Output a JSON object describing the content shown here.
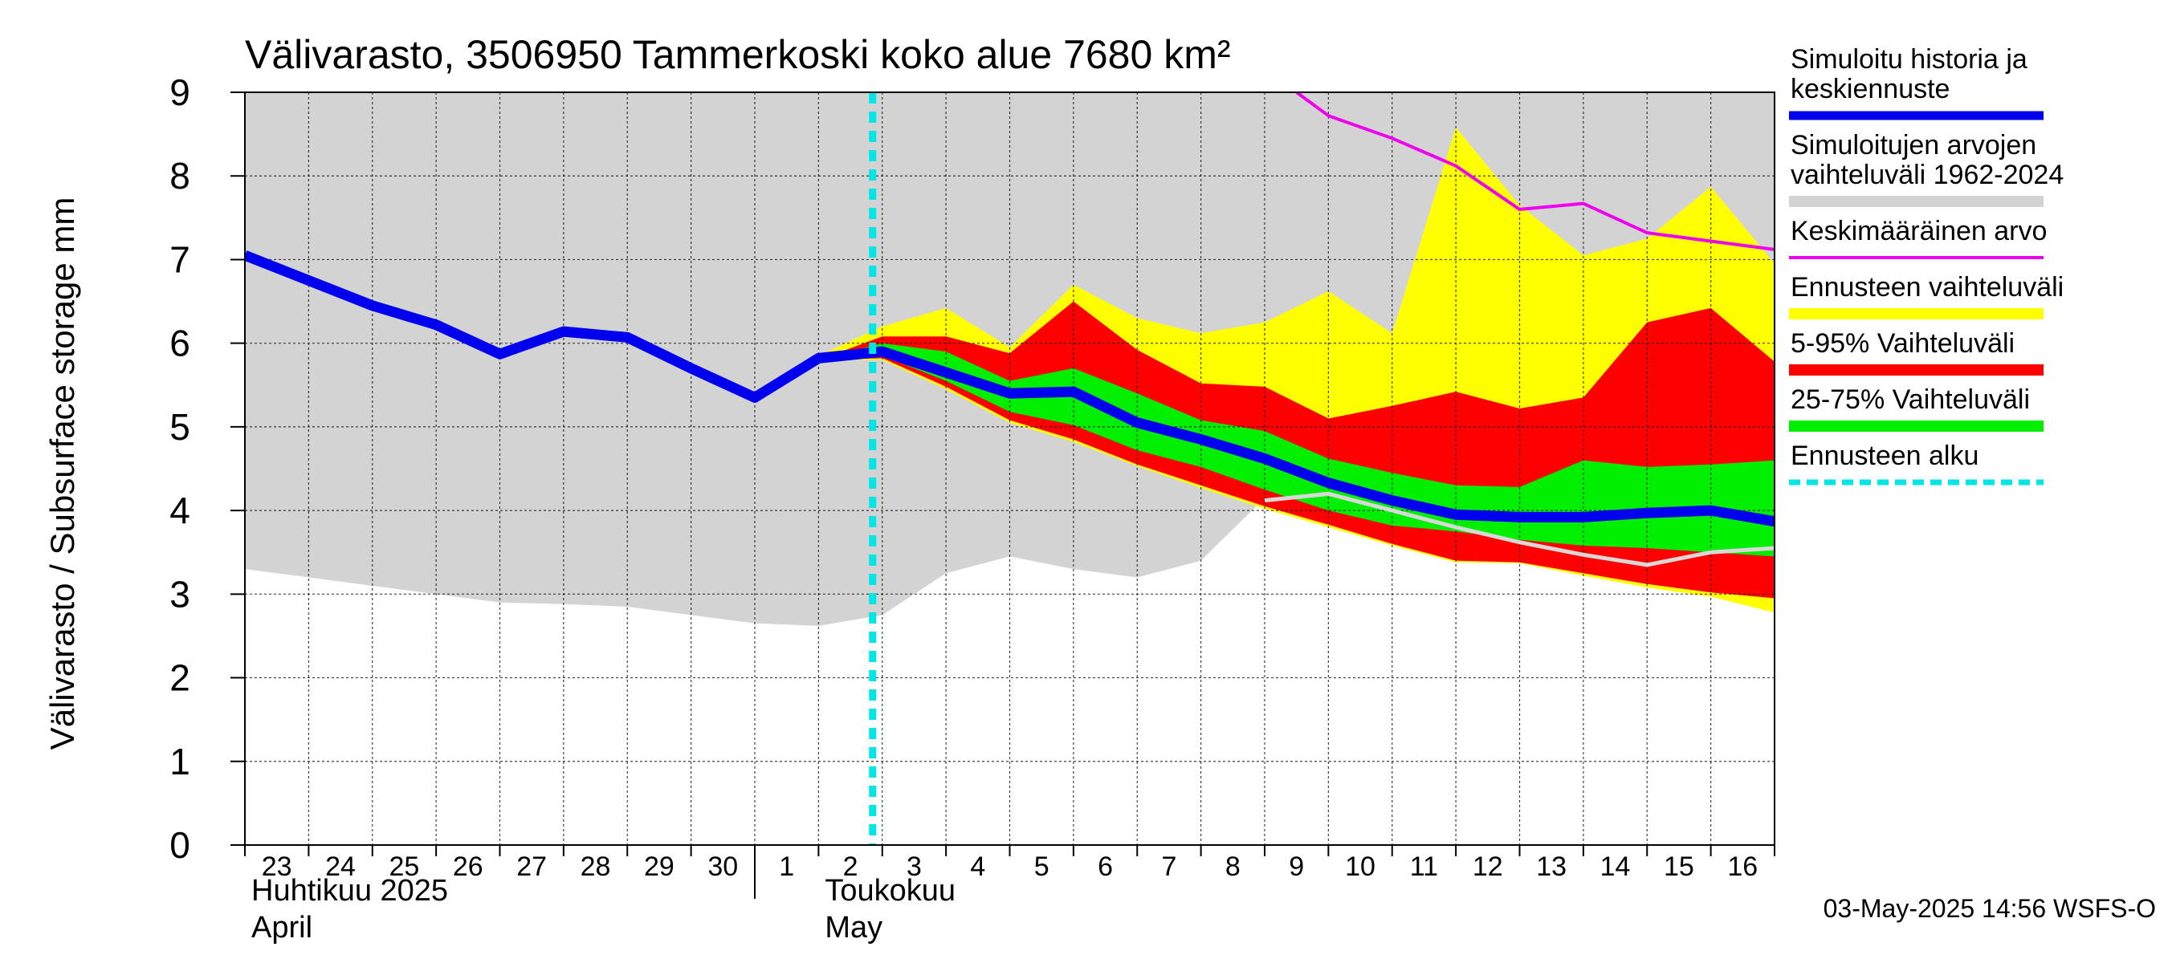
{
  "chart_data": {
    "type": "area",
    "title": "Välivarasto, 3506950 Tammerkoski koko alue 7680 km²",
    "ylabel": "Välivarasto / Subsurface storage  mm",
    "ylim": [
      0,
      9
    ],
    "yticks": [
      0,
      1,
      2,
      3,
      4,
      5,
      6,
      7,
      8,
      9
    ],
    "x_days": [
      "23",
      "24",
      "25",
      "26",
      "27",
      "28",
      "29",
      "30",
      "1",
      "2",
      "3",
      "4",
      "5",
      "6",
      "7",
      "8",
      "9",
      "10",
      "11",
      "12",
      "13",
      "14",
      "15",
      "16"
    ],
    "month_labels": [
      {
        "fi": "Huhtikuu  2025",
        "en": "April",
        "start_day": "23"
      },
      {
        "fi": "Toukokuu",
        "en": "May",
        "start_day": "2"
      }
    ],
    "month_divider_at_day": "1",
    "forecast_start_index": 10,
    "grid": true,
    "colors": {
      "history_range": "#d3d3d3",
      "simulated": "#0000ee",
      "mean": "#ee00ee",
      "forecast_range": "#ffff00",
      "p5_95": "#ff0000",
      "p25_75": "#00ee00",
      "forecast_start": "#00e5e5",
      "gray_line": "#d8d8d8"
    },
    "history_range": {
      "x": [
        0,
        1,
        2,
        3,
        4,
        5,
        6,
        7,
        8,
        9,
        10,
        11,
        12,
        13,
        14,
        15,
        16,
        17,
        18,
        19,
        20,
        21,
        22,
        23,
        24
      ],
      "lower": [
        3.3,
        3.2,
        3.1,
        3.0,
        2.9,
        2.88,
        2.85,
        2.75,
        2.65,
        2.62,
        2.75,
        3.25,
        3.45,
        3.3,
        3.2,
        3.4,
        4.15,
        4.2,
        4.0,
        3.8,
        3.6,
        3.4,
        3.35,
        3.5,
        3.55
      ],
      "upper": [
        9,
        9,
        9,
        9,
        9,
        9,
        9,
        9,
        9,
        9,
        9,
        9,
        9,
        9,
        9,
        9,
        9,
        9,
        9,
        9,
        9,
        9,
        9,
        9,
        9
      ]
    },
    "forecast_range": {
      "x": [
        9,
        10,
        11,
        12,
        13,
        14,
        15,
        16,
        17,
        18,
        19,
        20,
        21,
        22,
        23,
        24
      ],
      "lower": [
        5.8,
        5.8,
        5.45,
        5.05,
        4.82,
        4.53,
        4.27,
        4.02,
        3.8,
        3.58,
        3.38,
        3.37,
        3.22,
        3.08,
        2.97,
        2.78
      ],
      "upper": [
        5.85,
        6.2,
        6.42,
        5.95,
        6.7,
        6.3,
        6.12,
        6.25,
        6.62,
        6.12,
        8.58,
        7.65,
        7.05,
        7.25,
        7.87,
        6.95
      ]
    },
    "p5_95": {
      "x": [
        9,
        10,
        11,
        12,
        13,
        14,
        15,
        16,
        17,
        18,
        19,
        20,
        21,
        22,
        23,
        24
      ],
      "lower": [
        5.8,
        5.82,
        5.48,
        5.08,
        4.85,
        4.55,
        4.3,
        4.05,
        3.83,
        3.6,
        3.4,
        3.38,
        3.25,
        3.12,
        3.02,
        2.95
      ],
      "upper": [
        5.8,
        6.08,
        6.08,
        5.88,
        6.5,
        5.92,
        5.52,
        5.48,
        5.1,
        5.25,
        5.42,
        5.22,
        5.35,
        6.25,
        6.42,
        5.78
      ]
    },
    "p25_75": {
      "x": [
        9,
        10,
        11,
        12,
        13,
        14,
        15,
        16,
        17,
        18,
        19,
        20,
        21,
        22,
        23,
        24
      ],
      "lower": [
        5.8,
        5.85,
        5.55,
        5.18,
        5.02,
        4.72,
        4.52,
        4.25,
        4.0,
        3.82,
        3.75,
        3.65,
        3.58,
        3.55,
        3.5,
        3.45
      ],
      "upper": [
        5.8,
        6.0,
        5.9,
        5.55,
        5.7,
        5.4,
        5.08,
        4.95,
        4.62,
        4.45,
        4.3,
        4.28,
        4.6,
        4.52,
        4.55,
        4.6
      ]
    },
    "series": [
      {
        "name": "Simuloitu historia ja keskiennuste",
        "x": [
          0,
          1,
          2,
          3,
          4,
          5,
          6,
          7,
          8,
          9,
          10,
          11,
          12,
          13,
          14,
          15,
          16,
          17,
          18,
          19,
          20,
          21,
          22,
          23,
          24
        ],
        "values": [
          7.05,
          6.75,
          6.45,
          6.22,
          5.87,
          6.14,
          6.07,
          5.7,
          5.35,
          5.82,
          5.9,
          5.65,
          5.4,
          5.42,
          5.05,
          4.85,
          4.62,
          4.33,
          4.12,
          3.95,
          3.92,
          3.92,
          3.97,
          4.0,
          3.87
        ]
      },
      {
        "name": "Keskimääräinen arvo",
        "x": [
          16.5,
          17,
          18,
          19,
          20,
          21,
          22,
          23,
          24
        ],
        "values": [
          9.0,
          8.72,
          8.45,
          8.12,
          7.6,
          7.67,
          7.32,
          7.22,
          7.12
        ]
      },
      {
        "name": "",
        "x": [
          16,
          17,
          18,
          19,
          20,
          21,
          22,
          23,
          24
        ],
        "values": [
          4.12,
          4.2,
          4.0,
          3.8,
          3.62,
          3.47,
          3.35,
          3.5,
          3.55
        ]
      }
    ],
    "legend": [
      {
        "label": "Simuloitu historia ja keskiennuste",
        "kind": "line-thick",
        "color_key": "simulated"
      },
      {
        "label": "Simuloitujen arvojen vaihteluväli 1962-2024",
        "kind": "band",
        "color_key": "history_range"
      },
      {
        "label": "Keskimääräinen arvo",
        "kind": "line-thin",
        "color_key": "mean"
      },
      {
        "label": "Ennusteen vaihteluväli",
        "kind": "band",
        "color_key": "forecast_range"
      },
      {
        "label": "5-95% Vaihteluväli",
        "kind": "band",
        "color_key": "p5_95"
      },
      {
        "label": "25-75% Vaihteluväli",
        "kind": "band",
        "color_key": "p25_75"
      },
      {
        "label": "Ennusteen alku",
        "kind": "dashed",
        "color_key": "forecast_start"
      }
    ],
    "legend_position": "right",
    "footer": "03-May-2025 14:56 WSFS-O"
  }
}
